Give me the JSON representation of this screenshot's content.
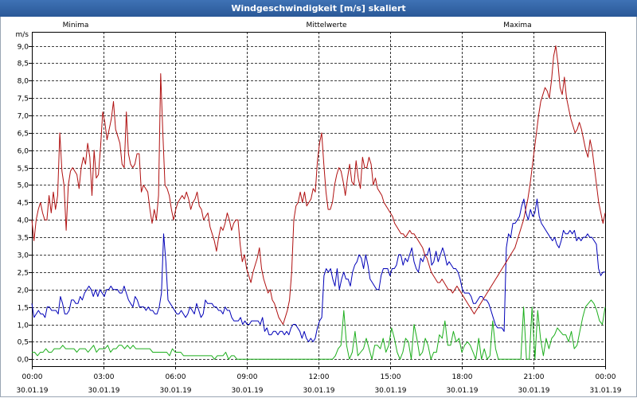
{
  "window": {
    "title": "Windgeschwindigkeit [m/s] skaliert"
  },
  "chart_data": {
    "type": "line",
    "title": "Windgeschwindigkeit [m/s] skaliert",
    "ylabel": "m/s",
    "xlabel": "",
    "ylim": [
      -0.2,
      9.4
    ],
    "xlim": [
      0,
      24
    ],
    "grid": true,
    "legend_position": "top",
    "y_ticks": [
      "0,0",
      "0,5",
      "1,0",
      "1,5",
      "2,0",
      "2,5",
      "3,0",
      "3,5",
      "4,0",
      "4,5",
      "5,0",
      "5,5",
      "6,0",
      "6,5",
      "7,0",
      "7,5",
      "8,0",
      "8,5",
      "9,0"
    ],
    "x_ticks": [
      {
        "time": "00:00",
        "date": "30.01.19"
      },
      {
        "time": "03:00",
        "date": "30.01.19"
      },
      {
        "time": "06:00",
        "date": "30.01.19"
      },
      {
        "time": "09:00",
        "date": "30.01.19"
      },
      {
        "time": "12:00",
        "date": "30.01.19"
      },
      {
        "time": "15:00",
        "date": "30.01.19"
      },
      {
        "time": "18:00",
        "date": "30.01.19"
      },
      {
        "time": "21:00",
        "date": "30.01.19"
      },
      {
        "time": "00:00",
        "date": "31.01.19"
      }
    ],
    "series": [
      {
        "name": "Minima",
        "color": "#1cae1c",
        "values": [
          0.2,
          0.2,
          0.1,
          0.2,
          0.2,
          0.3,
          0.2,
          0.2,
          0.3,
          0.3,
          0.3,
          0.4,
          0.3,
          0.3,
          0.3,
          0.3,
          0.2,
          0.3,
          0.3,
          0.3,
          0.2,
          0.3,
          0.4,
          0.2,
          0.3,
          0.3,
          0.3,
          0.4,
          0.2,
          0.3,
          0.3,
          0.4,
          0.4,
          0.3,
          0.4,
          0.3,
          0.4,
          0.3,
          0.3,
          0.3,
          0.3,
          0.3,
          0.3,
          0.2,
          0.2,
          0.2,
          0.2,
          0.2,
          0.2,
          0.1,
          0.3,
          0.2,
          0.2,
          0.2,
          0.1,
          0.1,
          0.1,
          0.1,
          0.1,
          0.1,
          0.1,
          0.1,
          0.1,
          0.1,
          0.1,
          0.0,
          0.1,
          0.1,
          0.1,
          0.2,
          0.0,
          0.1,
          0.1,
          0.0,
          0.0,
          0.0,
          0.0,
          0.0,
          0.0,
          0.0,
          0.0,
          0.0,
          0.0,
          0.0,
          0.0,
          0.0,
          0.0,
          0.0,
          0.0,
          0.0,
          0.0,
          0.0,
          0.0,
          0.0,
          0.0,
          0.0,
          0.0,
          0.0,
          0.0,
          0.0,
          0.0,
          0.0,
          0.0,
          0.0,
          0.0,
          0.0,
          0.0,
          0.0,
          0.1,
          0.3,
          0.4,
          1.4,
          0.4,
          0.0,
          0.2,
          0.8,
          0.1,
          0.2,
          0.3,
          0.6,
          0.3,
          0.0,
          0.4,
          0.4,
          0.3,
          0.6,
          0.2,
          0.4,
          0.9,
          0.6,
          0.2,
          0.0,
          0.2,
          0.6,
          0.5,
          0.0,
          1.0,
          0.6,
          0.1,
          0.2,
          0.6,
          0.4,
          0.0,
          0.2,
          0.2,
          0.7,
          0.6,
          1.1,
          0.4,
          0.4,
          0.8,
          0.5,
          0.6,
          0.2,
          0.4,
          0.5,
          0.4,
          0.2,
          0.0,
          0.6,
          0.0,
          0.3,
          0.0,
          0.1,
          1.1,
          0.3,
          0.0,
          0.0,
          0.0,
          0.0,
          0.0,
          0.0,
          0.0,
          0.0,
          0.0,
          1.5,
          0.0,
          0.0,
          1.5,
          0.0,
          1.4,
          0.6,
          0.1,
          0.6,
          0.3,
          0.6,
          0.7,
          0.9,
          0.8,
          0.7,
          0.7,
          0.5,
          0.8,
          0.3,
          0.4,
          0.8,
          1.2,
          1.5,
          1.6,
          1.7,
          1.6,
          1.4,
          1.1,
          1.0,
          1.5
        ]
      },
      {
        "name": "Mittelwerte",
        "color": "#0000b8",
        "values": [
          1.6,
          1.2,
          1.3,
          1.4,
          1.3,
          1.3,
          1.2,
          1.5,
          1.5,
          1.4,
          1.4,
          1.4,
          1.3,
          1.8,
          1.6,
          1.3,
          1.3,
          1.4,
          1.7,
          1.7,
          1.6,
          1.6,
          1.8,
          1.7,
          1.9,
          2.0,
          2.1,
          2.0,
          1.8,
          2.0,
          1.8,
          2.0,
          1.9,
          1.8,
          2.0,
          2.0,
          2.1,
          2.0,
          2.0,
          2.0,
          1.9,
          1.9,
          2.1,
          1.9,
          1.7,
          1.6,
          1.5,
          1.8,
          1.7,
          1.5,
          1.5,
          1.5,
          1.4,
          1.5,
          1.4,
          1.4,
          1.3,
          1.3,
          1.5,
          1.9,
          3.6,
          2.8,
          1.7,
          1.6,
          1.5,
          1.4,
          1.3,
          1.3,
          1.4,
          1.3,
          1.2,
          1.3,
          1.5,
          1.4,
          1.3,
          1.6,
          1.4,
          1.2,
          1.3,
          1.7,
          1.6,
          1.6,
          1.6,
          1.5,
          1.5,
          1.4,
          1.4,
          1.3,
          1.5,
          1.4,
          1.4,
          1.2,
          1.1,
          1.1,
          1.1,
          1.2,
          1.0,
          1.1,
          1.0,
          1.0,
          1.1,
          1.1,
          1.1,
          1.1,
          1.0,
          1.2,
          0.8,
          0.9,
          0.7,
          0.7,
          0.8,
          0.8,
          0.7,
          0.8,
          0.8,
          0.7,
          0.8,
          0.7,
          0.9,
          1.0,
          1.0,
          0.9,
          0.8,
          0.6,
          0.8,
          0.6,
          0.5,
          0.6,
          0.5,
          0.6,
          0.9,
          1.1,
          1.2,
          2.4,
          2.6,
          2.5,
          2.6,
          2.3,
          2.1,
          2.6,
          2.0,
          2.3,
          2.5,
          2.3,
          2.3,
          2.1,
          2.5,
          2.7,
          2.8,
          3.0,
          2.9,
          2.6,
          3.0,
          2.7,
          2.3,
          2.2,
          2.1,
          2.0,
          2.0,
          2.4,
          2.6,
          2.6,
          2.6,
          2.4,
          2.6,
          2.6,
          2.7,
          3.0,
          3.0,
          2.7,
          2.9,
          2.8,
          3.0,
          3.2,
          2.8,
          2.6,
          2.5,
          2.9,
          2.8,
          3.0,
          3.0,
          3.2,
          2.7,
          2.8,
          3.1,
          2.8,
          3.0,
          3.2,
          3.0,
          2.7,
          2.8,
          2.7,
          2.6,
          2.6,
          2.5,
          2.3,
          2.0,
          1.9,
          1.9,
          1.9,
          1.8,
          1.6,
          1.6,
          1.7,
          1.8,
          1.8,
          1.7,
          1.7,
          1.6,
          1.4,
          1.2,
          1.0,
          0.9,
          0.9,
          0.9,
          0.8,
          3.2,
          3.6,
          3.5,
          3.9,
          3.9,
          4.0,
          4.1,
          4.4,
          4.6,
          4.2,
          4.0,
          4.3,
          4.1,
          4.2,
          4.6,
          4.1,
          3.9,
          3.8,
          3.7,
          3.6,
          3.5,
          3.4,
          3.5,
          3.3,
          3.2,
          3.4,
          3.7,
          3.6,
          3.6,
          3.7,
          3.6,
          3.7,
          3.4,
          3.5,
          3.4,
          3.5,
          3.5,
          3.6,
          3.5,
          3.5,
          3.4,
          3.3,
          2.6,
          2.4,
          2.5,
          2.5
        ]
      },
      {
        "name": "Maxima",
        "color": "#b01010",
        "values": [
          4.0,
          3.4,
          4.0,
          4.3,
          4.5,
          4.2,
          4.0,
          4.0,
          4.7,
          4.2,
          4.8,
          4.3,
          4.7,
          6.5,
          5.4,
          5.0,
          3.7,
          5.0,
          5.4,
          5.5,
          5.4,
          5.3,
          4.9,
          5.5,
          5.8,
          5.6,
          6.2,
          5.8,
          4.7,
          6.0,
          5.2,
          5.3,
          6.1,
          7.1,
          6.8,
          6.3,
          6.6,
          6.9,
          7.4,
          6.6,
          6.4,
          6.2,
          5.6,
          5.5,
          7.1,
          5.9,
          5.6,
          5.5,
          5.6,
          5.9,
          5.9,
          4.8,
          5.0,
          4.9,
          4.8,
          4.3,
          3.9,
          4.3,
          4.0,
          4.7,
          8.2,
          6.5,
          5.0,
          4.9,
          4.7,
          4.3,
          4.0,
          4.3,
          4.5,
          4.6,
          4.7,
          4.6,
          4.8,
          4.6,
          4.3,
          4.5,
          4.6,
          4.8,
          4.4,
          4.3,
          4.0,
          4.1,
          4.2,
          3.8,
          3.6,
          3.4,
          3.1,
          3.5,
          3.8,
          3.7,
          3.9,
          4.2,
          4.0,
          3.7,
          3.9,
          4.0,
          4.0,
          3.3,
          2.8,
          3.0,
          2.6,
          2.4,
          2.2,
          2.5,
          2.7,
          2.9,
          3.2,
          2.6,
          2.3,
          2.1,
          1.9,
          2.0,
          1.7,
          1.6,
          1.4,
          1.2,
          1.1,
          1.0,
          1.2,
          1.4,
          1.7,
          2.5,
          4.0,
          4.4,
          4.5,
          4.8,
          4.5,
          4.8,
          4.4,
          4.5,
          4.6,
          4.9,
          4.8,
          5.7,
          6.2,
          6.5,
          5.6,
          4.8,
          4.3,
          4.3,
          4.5,
          5.0,
          5.3,
          5.5,
          5.4,
          5.1,
          4.7,
          5.2,
          5.6,
          5.1,
          5.0,
          5.7,
          5.2,
          4.9,
          5.8,
          5.5,
          5.5,
          5.8,
          5.6,
          5.0,
          5.2,
          4.9,
          4.8,
          4.7,
          4.5,
          4.4,
          4.3,
          4.2,
          4.1,
          3.9,
          3.8,
          3.7,
          3.6,
          3.6,
          3.5,
          3.6,
          3.7,
          3.6,
          3.6,
          3.5,
          3.4,
          3.3,
          3.2,
          3.0,
          2.9,
          2.7,
          2.5,
          2.4,
          2.3,
          2.2,
          2.2,
          2.3,
          2.2,
          2.1,
          2.0,
          2.0,
          1.9,
          2.0,
          2.1,
          2.0,
          1.9,
          1.8,
          1.7,
          1.6,
          1.5,
          1.4,
          1.3,
          1.4,
          1.5,
          1.6,
          1.7,
          1.8,
          1.9,
          2.0,
          2.1,
          2.2,
          2.3,
          2.4,
          2.5,
          2.6,
          2.7,
          2.8,
          2.9,
          3.0,
          3.1,
          3.2,
          3.4,
          3.6,
          3.8,
          4.0,
          4.3,
          4.6,
          5.0,
          5.5,
          6.0,
          6.5,
          7.0,
          7.4,
          7.6,
          7.8,
          7.7,
          7.5,
          8.0,
          8.7,
          9.0,
          8.5,
          7.8,
          7.6,
          8.1,
          7.5,
          7.2,
          6.9,
          6.7,
          6.5,
          6.6,
          6.8,
          6.6,
          6.3,
          6.0,
          5.8,
          6.3,
          6.0,
          5.5,
          5.0,
          4.5,
          4.2,
          3.9,
          4.2
        ]
      }
    ]
  }
}
